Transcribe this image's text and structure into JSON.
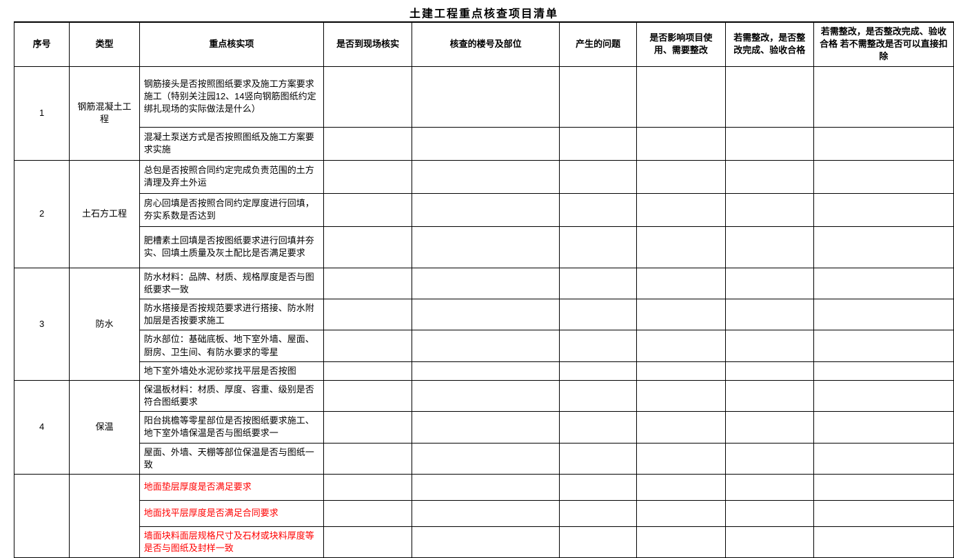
{
  "title": "土建工程重点核查项目清单",
  "headers": {
    "col1": "序号",
    "col2": "类型",
    "col3": "重点核实项",
    "col4": "是否到现场核实",
    "col5": "核查的楼号及部位",
    "col6": "产生的问题",
    "col7": "是否影响项目使用、需要整改",
    "col8": "若需整改，是否整改完成、验收合格",
    "col9": "若需整改，是否整改完成、验收合格  若不需整改是否可以直接扣除"
  },
  "sections": [
    {
      "index": "1",
      "type": "钢筋混凝土工程",
      "items": [
        {
          "text": "钢筋接头是否按照图纸要求及施工方案要求施工（特别关注园12、14竖向钢筋图纸约定绑扎现场的实际做法是什么）",
          "red": false,
          "height": 88
        },
        {
          "text": "混凝土泵送方式是否按照图纸及施工方案要求实施",
          "red": false,
          "height": 48
        }
      ]
    },
    {
      "index": "2",
      "type": "土石方工程",
      "items": [
        {
          "text": "总包是否按照合同约定完成负责范围的土方清理及弃土外运",
          "red": false,
          "height": 48
        },
        {
          "text": "房心回填是否按照合同约定厚度进行回填，夯实系数是否达到",
          "red": false,
          "height": 48
        },
        {
          "text": "肥槽素土回填是否按图纸要求进行回填并夯实、回填土质量及灰土配比是否满足要求",
          "red": false,
          "height": 60
        }
      ]
    },
    {
      "index": "3",
      "type": "防水",
      "items": [
        {
          "text": "防水材料：品牌、材质、规格厚度是否与图纸要求一致",
          "red": false,
          "height": 42
        },
        {
          "text": "防水搭接是否按规范要求进行搭接、防水附加层是否按要求施工",
          "red": false,
          "height": 42
        },
        {
          "text": "防水部位：基础底板、地下室外墙、屋面、厨房、卫生间、有防水要求的零星",
          "red": false,
          "height": 42
        },
        {
          "text": "地下室外墙处水泥砂浆找平层是否按图",
          "red": false,
          "height": 26
        }
      ]
    },
    {
      "index": "4",
      "type": "保温",
      "items": [
        {
          "text": "保温板材料：材质、厚度、容重、级别是否符合图纸要求",
          "red": false,
          "height": 42
        },
        {
          "text": "阳台挑檐等零星部位是否按图纸要求施工、地下室外墙保温是否与图纸要求一",
          "red": false,
          "height": 42
        },
        {
          "text": "屋面、外墙、天棚等部位保温是否与图纸一致",
          "red": false,
          "height": 36
        }
      ]
    },
    {
      "index": "",
      "type": "",
      "items": [
        {
          "text": "地面垫层厚度是否满足要求",
          "red": true,
          "height": 38
        },
        {
          "text": "地面找平层厚度是否满足合同要求",
          "red": true,
          "height": 38
        },
        {
          "text": "墙面块料面层规格尺寸及石材或块料厚度等是否与图纸及封样一致",
          "red": true,
          "height": 44
        }
      ]
    }
  ],
  "styling": {
    "border_color": "#000000",
    "red_color": "#ff0000",
    "background": "#ffffff",
    "font_size_title": 16,
    "font_size_body": 13
  }
}
